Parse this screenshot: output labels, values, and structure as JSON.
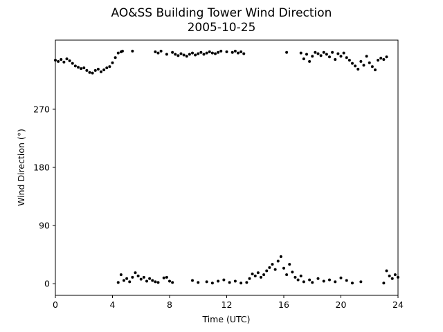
{
  "chart_data": {
    "type": "scatter",
    "title": "AO&SS Building Tower Wind Direction",
    "subtitle": "2005-10-25",
    "xlabel": "Time (UTC)",
    "ylabel": "Wind Direction (°)",
    "color": "#000000",
    "xlim": [
      0,
      24
    ],
    "xticks": [
      0,
      4,
      8,
      12,
      16,
      20,
      24
    ],
    "ylim": [
      -18,
      377
    ],
    "yticks": [
      0,
      90,
      180,
      270
    ],
    "x": [
      0.0,
      0.2,
      0.4,
      0.6,
      0.8,
      1.0,
      1.2,
      1.4,
      1.6,
      1.8,
      2.0,
      2.2,
      2.4,
      2.6,
      2.8,
      3.0,
      3.2,
      3.4,
      3.6,
      3.8,
      4.0,
      4.2,
      4.4,
      4.6,
      4.7,
      5.4,
      7.0,
      7.2,
      7.4,
      7.8,
      8.2,
      8.4,
      8.6,
      8.8,
      9.0,
      9.2,
      9.4,
      9.6,
      9.8,
      10.0,
      10.2,
      10.4,
      10.6,
      10.8,
      11.0,
      11.2,
      11.4,
      11.6,
      12.0,
      12.4,
      12.6,
      12.8,
      13.0,
      13.2,
      16.2,
      17.2,
      17.4,
      17.6,
      17.8,
      18.0,
      18.2,
      18.4,
      18.6,
      18.8,
      19.0,
      19.2,
      19.4,
      19.6,
      19.8,
      20.0,
      20.2,
      20.4,
      20.6,
      20.8,
      21.0,
      21.2,
      21.4,
      21.6,
      21.8,
      22.0,
      22.2,
      22.4,
      22.6,
      22.8,
      23.0,
      23.2,
      4.4,
      4.6,
      4.8,
      5.0,
      5.2,
      5.4,
      5.6,
      5.8,
      6.0,
      6.2,
      6.4,
      6.6,
      6.8,
      7.0,
      7.2,
      7.6,
      7.8,
      8.0,
      8.2,
      9.6,
      10.0,
      10.6,
      11.0,
      11.4,
      11.8,
      12.2,
      12.6,
      13.0,
      13.4,
      13.6,
      13.8,
      14.0,
      14.2,
      14.4,
      14.6,
      14.8,
      15.0,
      15.2,
      15.4,
      15.6,
      15.8,
      16.0,
      16.2,
      16.4,
      16.6,
      16.8,
      17.0,
      17.2,
      17.4,
      17.8,
      18.0,
      18.4,
      18.8,
      19.2,
      19.6,
      20.0,
      20.4,
      20.8,
      21.4,
      23.0,
      23.2,
      23.4,
      23.6,
      23.8,
      24.0
    ],
    "values": [
      346,
      344,
      347,
      343,
      348,
      345,
      341,
      337,
      335,
      333,
      334,
      330,
      327,
      326,
      330,
      332,
      328,
      331,
      334,
      336,
      342,
      350,
      357,
      359,
      360,
      360,
      359,
      357,
      360,
      355,
      358,
      355,
      353,
      356,
      354,
      352,
      355,
      357,
      354,
      356,
      358,
      355,
      357,
      359,
      357,
      356,
      358,
      360,
      359,
      358,
      360,
      357,
      359,
      356,
      358,
      357,
      348,
      355,
      344,
      352,
      358,
      356,
      353,
      358,
      355,
      351,
      358,
      347,
      356,
      352,
      357,
      350,
      346,
      341,
      337,
      332,
      344,
      338,
      352,
      342,
      336,
      331,
      346,
      349,
      347,
      351,
      2,
      14,
      5,
      8,
      3,
      10,
      17,
      12,
      7,
      10,
      4,
      8,
      5,
      3,
      2,
      9,
      10,
      4,
      2,
      5,
      2,
      3,
      1,
      4,
      6,
      2,
      4,
      1,
      2,
      8,
      15,
      12,
      17,
      10,
      14,
      20,
      25,
      30,
      22,
      35,
      42,
      24,
      14,
      30,
      18,
      10,
      6,
      12,
      3,
      6,
      2,
      8,
      4,
      6,
      3,
      9,
      5,
      1,
      3,
      1,
      20,
      12,
      8,
      14,
      10
    ]
  }
}
